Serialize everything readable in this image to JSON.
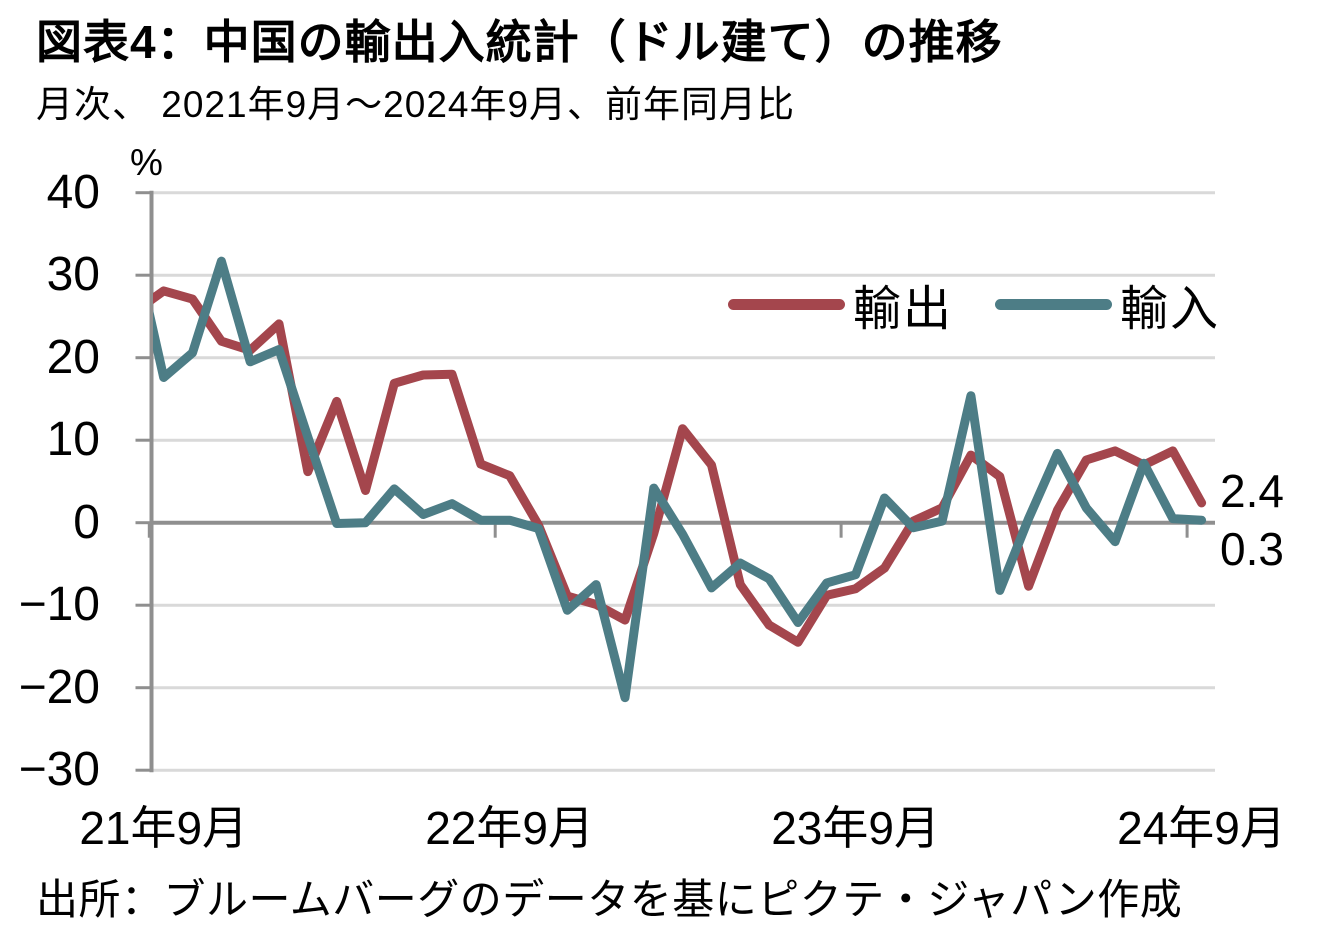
{
  "title": "図表4：中国の輸出入統計（ドル建て）の推移",
  "subtitle": "月次、 2021年9月～2024年9月、前年同月比",
  "unit_label": "%",
  "source": "出所：ブルームバーグのデータを基にピクテ・ジャパン作成",
  "end_labels": {
    "exports": "2.4",
    "imports": "0.3"
  },
  "colors": {
    "exports": "#A4464D",
    "imports": "#4D7D86",
    "gridline": "#D9D9D9",
    "axis": "#8F8F8F",
    "text": "#000000"
  },
  "chart_data": {
    "type": "line",
    "title": "図表4：中国の輸出入統計（ドル建て）の推移",
    "subtitle": "月次、 2021年9月～2024年9月、前年同月比",
    "ylabel": "%",
    "ylim": [
      -30,
      40
    ],
    "y_ticks": [
      40,
      30,
      20,
      10,
      0,
      -10,
      -20,
      -30
    ],
    "grid": "horizontal",
    "legend_position": "inside-top-right",
    "x_tick_labels": [
      "21年9月",
      "22年9月",
      "23年9月",
      "24年9月"
    ],
    "x_tick_months": [
      "2021-09",
      "2022-09",
      "2023-09",
      "2024-09"
    ],
    "x": [
      "2021-08",
      "2021-09",
      "2021-10",
      "2021-11",
      "2021-12",
      "2022-01",
      "2022-02",
      "2022-03",
      "2022-04",
      "2022-05",
      "2022-06",
      "2022-07",
      "2022-08",
      "2022-09",
      "2022-10",
      "2022-11",
      "2022-12",
      "2023-01",
      "2023-02",
      "2023-03",
      "2023-04",
      "2023-05",
      "2023-06",
      "2023-07",
      "2023-08",
      "2023-09",
      "2023-10",
      "2023-11",
      "2023-12",
      "2024-01",
      "2024-02",
      "2024-03",
      "2024-04",
      "2024-05",
      "2024-06",
      "2024-07",
      "2024-08",
      "2024-09"
    ],
    "note": "2021-08 point is clipped by the plot edge; values are % change year-over-year",
    "series": [
      {
        "name": "輸出",
        "color": "#A4464D",
        "values": [
          25.6,
          28.1,
          27.1,
          22.0,
          20.9,
          24.1,
          6.2,
          14.7,
          3.9,
          16.9,
          17.9,
          18.0,
          7.1,
          5.7,
          -0.3,
          -8.9,
          -9.9,
          -11.8,
          -1.3,
          11.4,
          7.0,
          -7.5,
          -12.4,
          -14.5,
          -8.8,
          -8.0,
          -5.5,
          0.2,
          1.8,
          8.2,
          5.6,
          -7.7,
          1.5,
          7.6,
          8.7,
          7.0,
          8.7,
          2.4
        ]
      },
      {
        "name": "輸入",
        "color": "#4D7D86",
        "values": [
          33.1,
          17.6,
          20.6,
          31.7,
          19.5,
          21.0,
          10.4,
          -0.1,
          0.0,
          4.1,
          1.0,
          2.3,
          0.3,
          0.3,
          -0.7,
          -10.6,
          -7.5,
          -21.2,
          4.2,
          -1.4,
          -7.9,
          -4.9,
          -6.8,
          -12.1,
          -7.3,
          -6.3,
          3.0,
          -0.6,
          0.2,
          15.4,
          -8.2,
          0.5,
          8.4,
          1.8,
          -2.3,
          7.2,
          0.5,
          0.3
        ]
      }
    ],
    "last_value_labels": {
      "輸出": "2.4",
      "輸入": "0.3"
    }
  }
}
